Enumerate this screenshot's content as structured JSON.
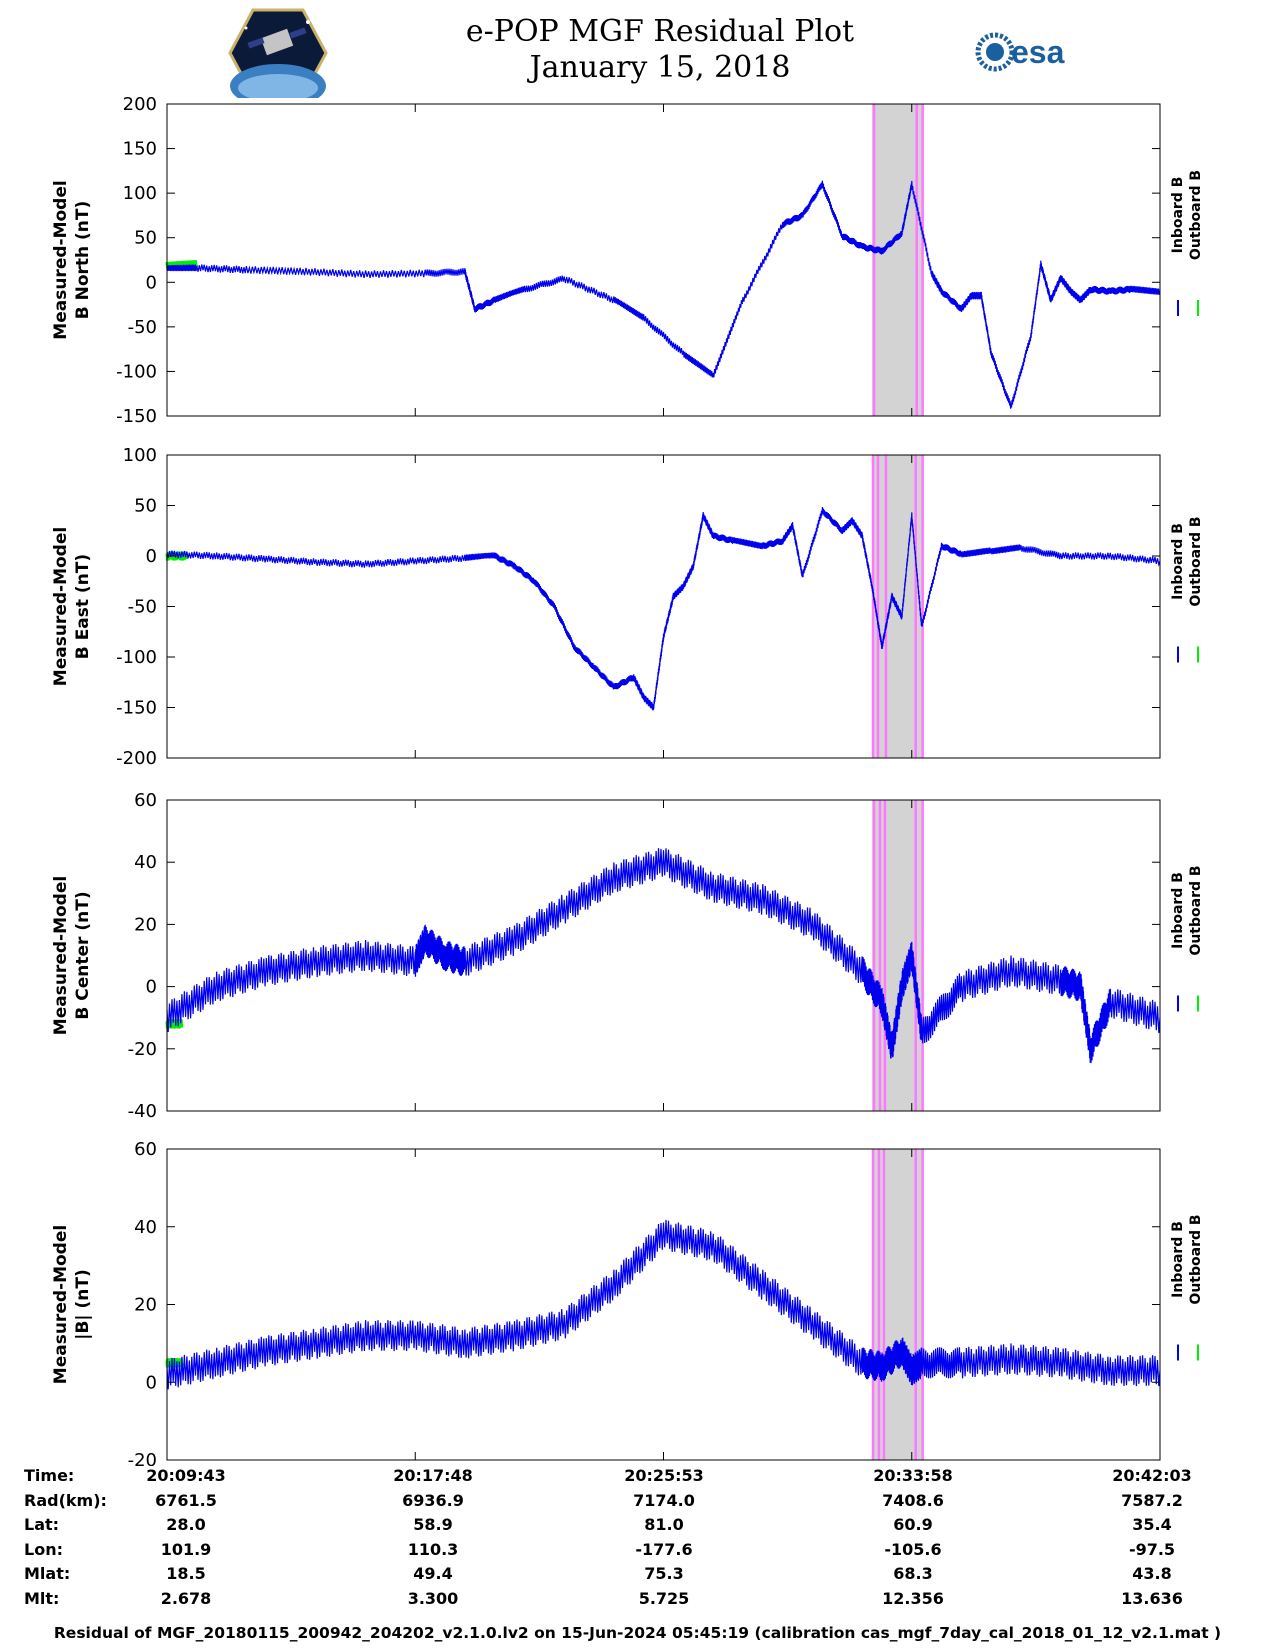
{
  "header": {
    "title": "e-POP MGF Residual Plot",
    "date": "January 15, 2018",
    "logo_left": "cassiope-satellite-logo",
    "logo_right": "esa",
    "colors": {
      "accent": "#1a5fa0"
    }
  },
  "chart_data": [
    {
      "type": "line",
      "ylabel_line1": "Measured-Model",
      "ylabel_line2": "B North (nT)",
      "ylim": [
        -150,
        200
      ],
      "yticks": [
        200,
        150,
        100,
        50,
        0,
        -50,
        -100,
        -150
      ],
      "legend": [
        "Inboard B",
        "Outboard B"
      ],
      "series": [
        {
          "name": "Inboard B",
          "color": "#0000ee",
          "t": [
            0,
            3,
            8,
            14,
            20,
            26,
            30,
            31,
            33,
            36,
            40,
            45,
            48,
            52,
            55,
            58,
            62,
            64,
            66,
            68,
            70,
            72,
            74,
            75,
            77,
            78,
            80,
            81,
            82,
            83,
            85,
            87,
            88,
            89,
            90,
            91,
            92,
            93,
            95,
            97,
            100
          ],
          "values": [
            17,
            16,
            14,
            12,
            9,
            10,
            12,
            -30,
            -20,
            -8,
            4,
            -20,
            -40,
            -80,
            -105,
            -20,
            65,
            75,
            110,
            52,
            40,
            35,
            55,
            110,
            10,
            -10,
            -30,
            -15,
            -15,
            -80,
            -140,
            -60,
            20,
            -20,
            5,
            -10,
            -20,
            -8,
            -10,
            -8,
            -10
          ]
        },
        {
          "name": "Outboard B",
          "color": "#00ee00",
          "t": [
            0,
            3
          ],
          "values": [
            20,
            20
          ]
        }
      ],
      "shaded_range_t": [
        71,
        76
      ],
      "magenta_lines_t": [
        71.2,
        75.5,
        76.1
      ]
    },
    {
      "type": "line",
      "ylabel_line1": "Measured-Model",
      "ylabel_line2": "B East (nT)",
      "ylim": [
        -200,
        100
      ],
      "yticks": [
        100,
        50,
        0,
        -50,
        -100,
        -150,
        -200
      ],
      "legend": [
        "Inboard B",
        "Outboard B"
      ],
      "series": [
        {
          "name": "Inboard B",
          "color": "#0000ee",
          "t": [
            0,
            5,
            10,
            15,
            20,
            25,
            30,
            33,
            35,
            37,
            39,
            41,
            43,
            45,
            47,
            48,
            49,
            50,
            51,
            52,
            53,
            54,
            55,
            57,
            60,
            62,
            63,
            64,
            66,
            68,
            69,
            70,
            71,
            72,
            73,
            74,
            75,
            76,
            78,
            80,
            83,
            86,
            90,
            95,
            100
          ],
          "values": [
            2,
            0,
            -3,
            -6,
            -8,
            -5,
            -2,
            0,
            -10,
            -25,
            -50,
            -90,
            -110,
            -130,
            -120,
            -140,
            -150,
            -80,
            -40,
            -30,
            -10,
            40,
            20,
            15,
            10,
            15,
            30,
            -20,
            45,
            25,
            35,
            20,
            -30,
            -90,
            -40,
            -60,
            40,
            -70,
            10,
            2,
            5,
            8,
            0,
            0,
            -5
          ]
        },
        {
          "name": "Outboard B",
          "color": "#00ee00",
          "t": [
            0,
            2
          ],
          "values": [
            0,
            0
          ]
        }
      ],
      "shaded_range_t": [
        71,
        76
      ],
      "magenta_lines_t": [
        71.1,
        71.6,
        72.4,
        75.4,
        76.1
      ]
    },
    {
      "type": "line",
      "ylabel_line1": "Measured-Model",
      "ylabel_line2": "B Center (nT)",
      "ylim": [
        -40,
        60
      ],
      "yticks": [
        60,
        40,
        20,
        0,
        -20,
        -40
      ],
      "legend": [
        "Inboard B",
        "Outboard B"
      ],
      "series": [
        {
          "name": "Inboard B",
          "color": "#0000ee",
          "t": [
            0,
            5,
            10,
            15,
            20,
            25,
            26,
            28,
            30,
            35,
            40,
            45,
            50,
            55,
            60,
            65,
            70,
            72,
            73,
            74,
            75,
            76,
            80,
            85,
            90,
            92,
            93,
            95,
            100
          ],
          "values": [
            -10,
            0,
            5,
            8,
            10,
            8,
            15,
            10,
            8,
            15,
            25,
            35,
            40,
            32,
            28,
            20,
            5,
            -5,
            -20,
            0,
            10,
            -15,
            0,
            5,
            2,
            0,
            -20,
            -5,
            -10
          ]
        },
        {
          "name": "Outboard B",
          "color": "#00ee00",
          "t": [
            0,
            1.5
          ],
          "values": [
            -12,
            -12
          ]
        }
      ],
      "shaded_range_t": [
        71,
        76
      ],
      "magenta_lines_t": [
        71.2,
        71.8,
        72.3,
        75.4,
        76.1
      ]
    },
    {
      "type": "line",
      "ylabel_line1": "Measured-Model",
      "ylabel_line2": "|B| (nT)",
      "ylim": [
        -20,
        60
      ],
      "yticks": [
        60,
        40,
        20,
        0,
        -20
      ],
      "legend": [
        "Inboard B",
        "Outboard B"
      ],
      "series": [
        {
          "name": "Inboard B",
          "color": "#0000ee",
          "t": [
            0,
            5,
            10,
            15,
            20,
            25,
            30,
            35,
            40,
            45,
            50,
            55,
            60,
            65,
            70,
            72,
            74,
            75,
            76,
            80,
            85,
            90,
            95,
            100
          ],
          "values": [
            2,
            5,
            8,
            10,
            12,
            12,
            10,
            12,
            15,
            25,
            38,
            35,
            25,
            15,
            5,
            4,
            8,
            3,
            5,
            5,
            6,
            5,
            3,
            3
          ]
        },
        {
          "name": "Outboard B",
          "color": "#00ee00",
          "t": [
            0,
            1.5
          ],
          "values": [
            5,
            5
          ]
        }
      ],
      "shaded_range_t": [
        71,
        76
      ],
      "magenta_lines_t": [
        71.1,
        71.7,
        72.2,
        75.4,
        76.1
      ]
    }
  ],
  "info_table": {
    "labels": [
      "Time:",
      "Rad(km):",
      "Lat:",
      "Lon:",
      "Mlat:",
      "Mlt:"
    ],
    "columns": [
      [
        "20:09:43",
        "6761.5",
        "28.0",
        "101.9",
        "18.5",
        "2.678"
      ],
      [
        "20:17:48",
        "6936.9",
        "58.9",
        "110.3",
        "49.4",
        "3.300"
      ],
      [
        "20:25:53",
        "7174.0",
        "81.0",
        "-177.6",
        "75.3",
        "5.725"
      ],
      [
        "20:33:58",
        "7408.6",
        "60.9",
        "-105.6",
        "68.3",
        "12.356"
      ],
      [
        "20:42:03",
        "7587.2",
        "35.4",
        "-97.5",
        "43.8",
        "13.636"
      ]
    ]
  },
  "footer": "Residual of MGF_20180115_200942_204202_v2.1.0.lv2 on 15-Jun-2024 05:45:19 (calibration cas_mgf_7day_cal_2018_01_12_v2.1.mat )"
}
